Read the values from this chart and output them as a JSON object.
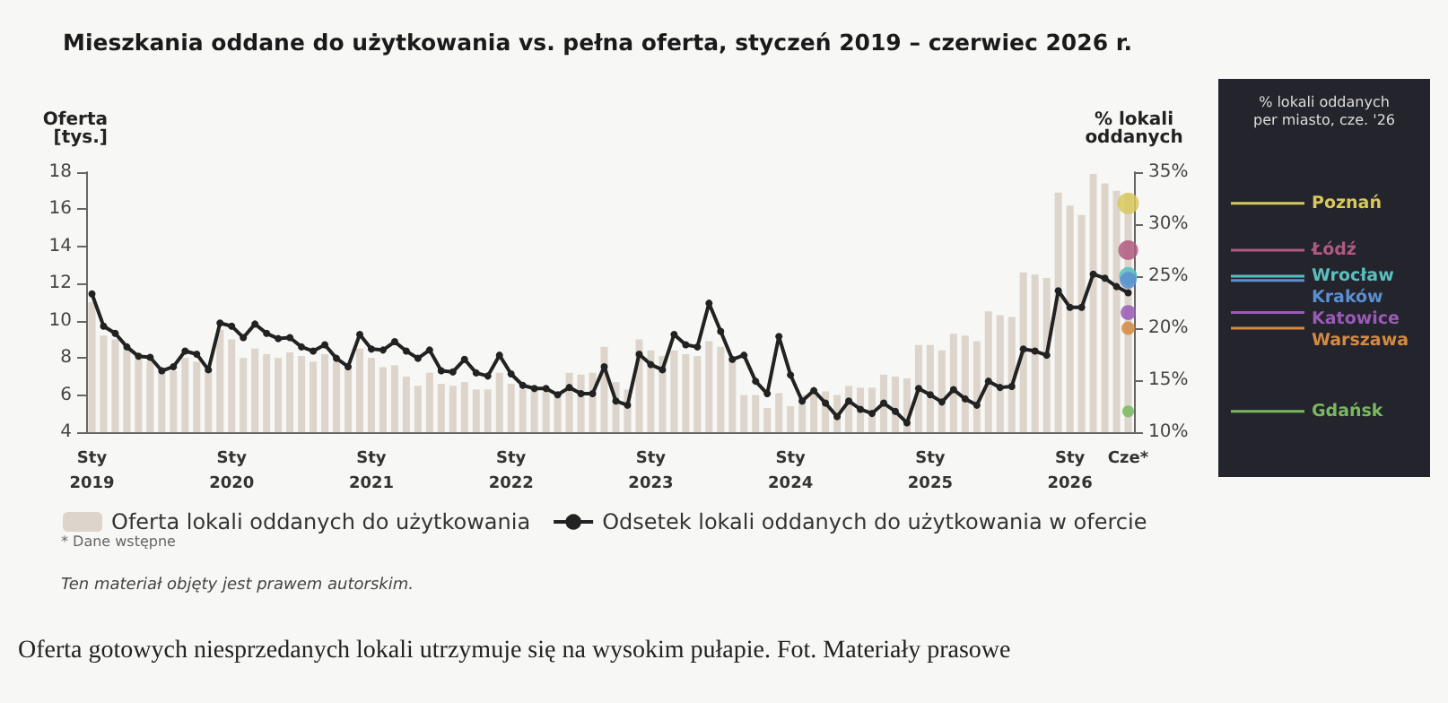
{
  "chart_data": {
    "type": "bar",
    "title": "Mieszkania oddane do użytkowania vs. pełna oferta, styczeń 2019 – czerwiec 2026 r.",
    "ylabel": "Oferta\n[tys.]",
    "y2label": "% lokali\noddanych",
    "legend_title": "% lokali oddanych\nper miasto, cze. '26",
    "categories": [
      "Sty 2019",
      null,
      null,
      null,
      null,
      null,
      null,
      null,
      null,
      null,
      null,
      null,
      "Sty 2020",
      null,
      null,
      null,
      null,
      null,
      null,
      null,
      null,
      null,
      null,
      null,
      "Sty 2021",
      null,
      null,
      null,
      null,
      null,
      null,
      null,
      null,
      null,
      null,
      null,
      "Sty 2022",
      null,
      null,
      null,
      null,
      null,
      null,
      null,
      null,
      null,
      null,
      null,
      "Sty 2023",
      null,
      null,
      null,
      null,
      null,
      null,
      null,
      null,
      null,
      null,
      null,
      "Sty 2024",
      null,
      null,
      null,
      null,
      null,
      null,
      null,
      null,
      null,
      null,
      null,
      "Sty 2025",
      null,
      null,
      null,
      null,
      null,
      null,
      null,
      null,
      null,
      null,
      null,
      "Sty 2026",
      null,
      null,
      null,
      null,
      "Cze*"
    ],
    "series": [
      {
        "name": "Oferta lokali oddanych do użytkowania",
        "color": "#ddd5cb",
        "values": [
          11.0,
          9.2,
          9.0,
          8.5,
          8.0,
          7.8,
          7.3,
          7.3,
          8.0,
          7.8,
          7.4,
          9.5,
          9.0,
          8.0,
          8.5,
          8.2,
          8.0,
          8.3,
          8.1,
          7.8,
          8.2,
          7.8,
          7.5,
          8.5,
          8.0,
          7.5,
          7.6,
          7.0,
          6.5,
          7.2,
          6.6,
          6.5,
          6.7,
          6.3,
          6.3,
          7.2,
          6.6,
          6.3,
          6.3,
          6.2,
          6.0,
          7.2,
          7.1,
          7.2,
          8.6,
          6.7,
          6.3,
          9.0,
          8.4,
          8.1,
          8.4,
          8.2,
          8.1,
          8.9,
          8.6,
          8.0,
          6.0,
          6.0,
          5.3,
          6.1,
          5.4,
          6.0,
          6.0,
          6.2,
          6.0,
          6.5,
          6.4,
          6.4,
          7.1,
          7.0,
          6.9,
          8.7,
          8.7,
          8.4,
          9.3,
          9.2,
          8.9,
          10.5,
          10.3,
          10.2,
          12.6,
          12.5,
          12.3,
          16.9,
          16.2,
          15.7,
          17.9,
          17.4,
          17.0,
          16.8
        ]
      },
      {
        "name": "Odsetek lokali oddanych do użytkowania w ofercie",
        "type": "line",
        "axis": "y2",
        "color": "#222222",
        "values": [
          23.3,
          20.2,
          19.5,
          18.2,
          17.3,
          17.2,
          15.9,
          16.3,
          17.8,
          17.5,
          16.0,
          20.5,
          20.2,
          19.1,
          20.4,
          19.5,
          19.0,
          19.1,
          18.2,
          17.8,
          18.4,
          17.1,
          16.3,
          19.4,
          18.0,
          17.9,
          18.7,
          17.8,
          17.1,
          17.9,
          15.9,
          15.8,
          17.0,
          15.7,
          15.4,
          17.4,
          15.6,
          14.5,
          14.2,
          14.2,
          13.6,
          14.3,
          13.7,
          13.7,
          16.3,
          13.0,
          12.6,
          17.5,
          16.5,
          16.0,
          19.4,
          18.4,
          18.2,
          22.4,
          19.7,
          17.0,
          17.4,
          14.9,
          13.7,
          19.2,
          15.5,
          13.0,
          14.0,
          12.8,
          11.5,
          13.0,
          12.2,
          11.8,
          12.8,
          12.0,
          10.9,
          14.2,
          13.6,
          12.9,
          14.1,
          13.2,
          12.6,
          14.9,
          14.3,
          14.4,
          18.0,
          17.8,
          17.4,
          23.6,
          22.0,
          22.0,
          25.2,
          24.8,
          24.0,
          23.4
        ]
      },
      {
        "name": "Poznań",
        "type": "scatter",
        "axis": "y2",
        "color": "#d8c85a",
        "x": [
          "Cze*"
        ],
        "values": [
          32
        ]
      },
      {
        "name": "Łódź",
        "type": "scatter",
        "axis": "y2",
        "color": "#b05a80",
        "x": [
          "Cze*"
        ],
        "values": [
          27.5
        ]
      },
      {
        "name": "Wrocław",
        "type": "scatter",
        "axis": "y2",
        "color": "#5bbfbf",
        "x": [
          "Cze*"
        ],
        "values": [
          25
        ]
      },
      {
        "name": "Kraków",
        "type": "scatter",
        "axis": "y2",
        "color": "#5a8fd0",
        "x": [
          "Cze*"
        ],
        "values": [
          24.6
        ]
      },
      {
        "name": "Katowice",
        "type": "scatter",
        "axis": "y2",
        "color": "#9a5ab8",
        "x": [
          "Cze*"
        ],
        "values": [
          21.5
        ]
      },
      {
        "name": "Warszawa",
        "type": "scatter",
        "axis": "y2",
        "color": "#d48a40",
        "x": [
          "Cze*"
        ],
        "values": [
          20
        ]
      },
      {
        "name": "Gdańsk",
        "type": "scatter",
        "axis": "y2",
        "color": "#7ab860",
        "x": [
          "Cze*"
        ],
        "values": [
          12
        ]
      }
    ],
    "ylim": [
      4,
      18
    ],
    "yticks": [
      4,
      6,
      8,
      10,
      12,
      14,
      16,
      18
    ],
    "y2lim": [
      10,
      35
    ],
    "y2ticks": [
      {
        "value": 10,
        "label": "10%"
      },
      {
        "value": 15,
        "label": "15%"
      },
      {
        "value": 20,
        "label": "20%"
      },
      {
        "value": 25,
        "label": "25%"
      },
      {
        "value": 30,
        "label": "30%"
      },
      {
        "value": 35,
        "label": "35%"
      }
    ],
    "grid": false,
    "legend": "bottom",
    "marker": "circle",
    "annotations": [
      "* Dane wstępne",
      "Ten materiał objęty jest prawem autorskim.",
      "Oferta gotowych niesprzedanych lokali utrzymuje się na wysokim pułapie. Fot. Materiały prasowe"
    ]
  }
}
